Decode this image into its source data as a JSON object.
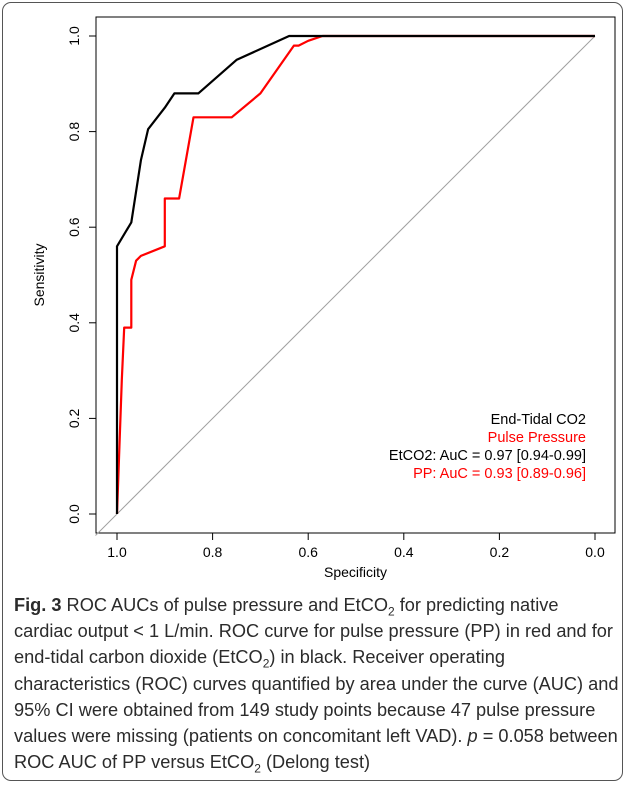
{
  "chart_data": {
    "type": "line",
    "xlabel": "Specificity",
    "ylabel": "Sensitivity",
    "xlim": [
      1.0,
      0.0
    ],
    "ylim": [
      0.0,
      1.0
    ],
    "x_ticks": [
      "1.0",
      "0.8",
      "0.6",
      "0.4",
      "0.2",
      "0.0"
    ],
    "y_ticks": [
      "0.0",
      "0.2",
      "0.4",
      "0.6",
      "0.8",
      "1.0"
    ],
    "reference_line": "diagonal",
    "legend": {
      "position": "bottom-right",
      "entries": [
        "End-Tidal CO2",
        "Pulse Pressure"
      ],
      "annotations": [
        "EtCO2: AuC = 0.97 [0.94-0.99]",
        "PP: AuC = 0.93 [0.89-0.96]"
      ]
    },
    "series": [
      {
        "name": "End-Tidal CO2",
        "color": "#000000",
        "specificity": [
          1.0,
          1.0,
          0.97,
          0.95,
          0.935,
          0.9,
          0.88,
          0.83,
          0.75,
          0.64,
          0.57,
          0.0
        ],
        "sensitivity": [
          0.0,
          0.56,
          0.61,
          0.74,
          0.805,
          0.85,
          0.88,
          0.88,
          0.95,
          1.0,
          1.0,
          1.0
        ]
      },
      {
        "name": "Pulse Pressure",
        "color": "#ff0000",
        "specificity": [
          1.0,
          0.99,
          0.985,
          0.97,
          0.97,
          0.96,
          0.95,
          0.9,
          0.9,
          0.87,
          0.84,
          0.76,
          0.7,
          0.63,
          0.62,
          0.6,
          0.57,
          0.0
        ],
        "sensitivity": [
          0.0,
          0.28,
          0.39,
          0.39,
          0.49,
          0.53,
          0.54,
          0.56,
          0.66,
          0.66,
          0.83,
          0.83,
          0.88,
          0.98,
          0.98,
          0.99,
          1.0,
          1.0
        ]
      }
    ]
  },
  "caption": {
    "fig_label": "Fig. 3",
    "p1": " ROC AUCs of pulse pressure and EtCO",
    "sub1": "2",
    "p2": " for predicting native cardiac output < 1 L/min. ROC curve for pulse pressure (PP) in red and for end-tidal carbon dioxide (EtCO",
    "sub2": "2",
    "p3": ") in black. Receiver operating characteristics (ROC) curves quantified by area under the curve (AUC) and 95% CI were obtained from 149 study points because 47 pulse pressure values were missing (patients on concomitant left VAD). ",
    "p_symbol": "p",
    "p4": " = 0.058 between ROC AUC of PP versus EtCO",
    "sub3": "2",
    "p5": " (Delong test)"
  }
}
